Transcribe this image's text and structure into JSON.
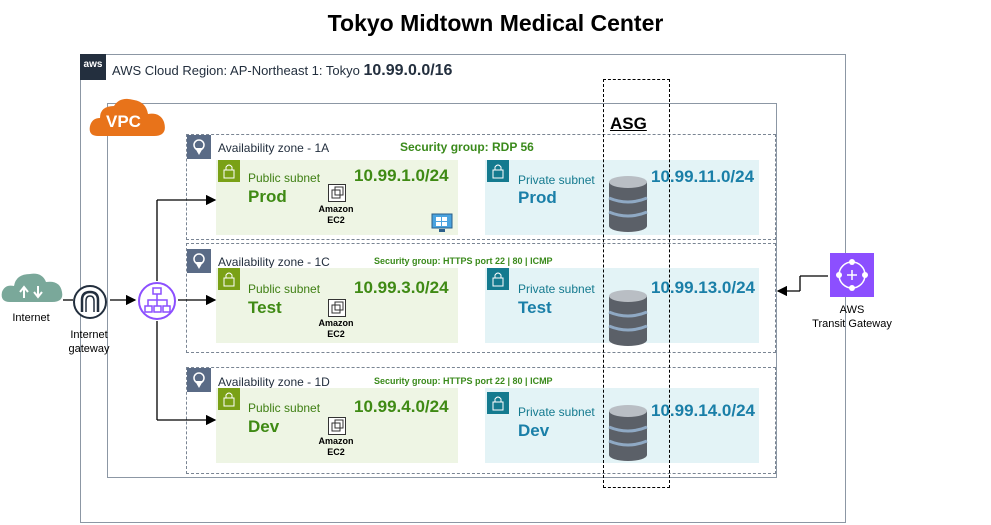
{
  "title": "Tokyo Midtown Medical Center",
  "aws_logo": "aws",
  "region": {
    "label": "AWS Cloud Region: AP-Northeast 1: Tokyo",
    "cidr": "10.99.0.0/16"
  },
  "vpc_label": "VPC",
  "asg_label": "ASG",
  "internet_label": "Internet",
  "igw_label": "Internet\ngateway",
  "tgw_label": "AWS\nTransit Gateway",
  "ec2_label": "Amazon\nEC2",
  "zones": [
    {
      "az": "Availability zone - 1A",
      "security_group": "Security group: RDP 56",
      "public": {
        "type": "Public subnet",
        "env": "Prod",
        "cidr": "10.99.1.0/24"
      },
      "private": {
        "type": "Private subnet",
        "env": "Prod",
        "cidr": "10.99.11.0/24"
      }
    },
    {
      "az": "Availability zone - 1C",
      "security_group": "Security group: HTTPS port 22 | 80 | ICMP",
      "public": {
        "type": "Public subnet",
        "env": "Test",
        "cidr": "10.99.3.0/24"
      },
      "private": {
        "type": "Private subnet",
        "env": "Test",
        "cidr": "10.99.13.0/24"
      }
    },
    {
      "az": "Availability zone - 1D",
      "security_group": "Security group: HTTPS port 22 | 80 | ICMP",
      "public": {
        "type": "Public subnet",
        "env": "Dev",
        "cidr": "10.99.4.0/24"
      },
      "private": {
        "type": "Private subnet",
        "env": "Dev",
        "cidr": "10.99.14.0/24"
      }
    }
  ],
  "colors": {
    "public": "#3f8a14",
    "private": "#1a7fa8",
    "vpc": "#e8731a",
    "tgw": "#8c4fff"
  }
}
